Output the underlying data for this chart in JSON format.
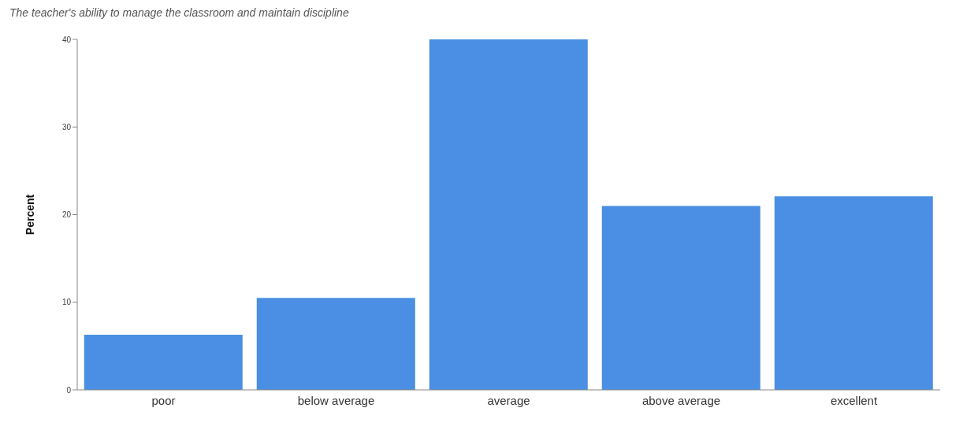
{
  "chart_data": {
    "type": "bar",
    "title": "The teacher's ability to manage the classroom and maintain discipline",
    "ylabel": "Percent",
    "categories": [
      "poor",
      "below average",
      "average",
      "above average",
      "excellent"
    ],
    "values": [
      6.3,
      10.5,
      40,
      21,
      22.1
    ],
    "color": "#4a8fe3",
    "ylim": [
      0,
      40
    ],
    "yticks": [
      0,
      10,
      20,
      30,
      40
    ],
    "grid": false,
    "legend": false
  }
}
